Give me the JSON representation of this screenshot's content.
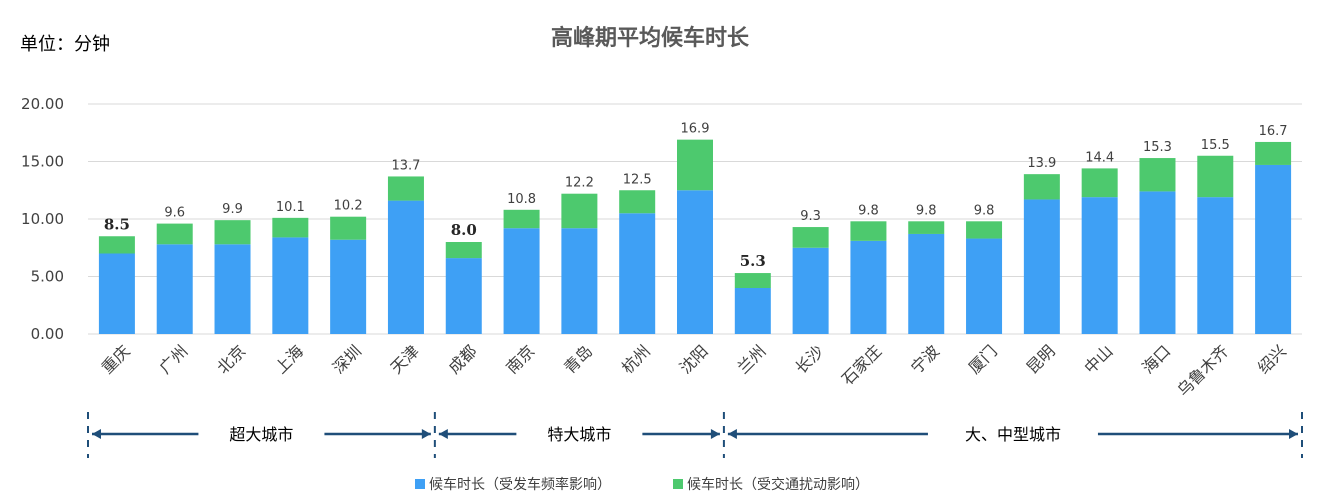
{
  "chart_data": {
    "type": "bar",
    "stacked": true,
    "title": "高峰期平均候车时长",
    "unit_label": "单位：分钟",
    "ylim": [
      0,
      20
    ],
    "yticks": [
      "0.00",
      "5.00",
      "10.00",
      "15.00",
      "20.00"
    ],
    "categories": [
      "重庆",
      "广州",
      "北京",
      "上海",
      "深圳",
      "天津",
      "成都",
      "南京",
      "青岛",
      "杭州",
      "沈阳",
      "兰州",
      "长沙",
      "石家庄",
      "宁波",
      "厦门",
      "昆明",
      "中山",
      "海口",
      "乌鲁木齐",
      "绍兴"
    ],
    "series": [
      {
        "name": "候车时长（受发车频率影响）",
        "color": "#3ea0f5",
        "values": [
          7.0,
          7.8,
          7.8,
          8.4,
          8.2,
          11.6,
          6.6,
          9.2,
          9.2,
          10.5,
          12.5,
          4.0,
          7.5,
          8.1,
          8.7,
          8.3,
          11.7,
          11.9,
          12.4,
          11.9,
          14.7
        ]
      },
      {
        "name": "候车时长（受交通扰动影响）",
        "color": "#4dc96e",
        "values": [
          1.5,
          1.8,
          2.1,
          1.7,
          2.0,
          2.1,
          1.4,
          1.6,
          3.0,
          2.0,
          4.4,
          1.3,
          1.8,
          1.7,
          1.1,
          1.5,
          2.2,
          2.5,
          2.9,
          3.6,
          2.0
        ]
      }
    ],
    "totals": [
      "8.5",
      "9.6",
      "9.9",
      "10.1",
      "10.2",
      "13.7",
      "8.0",
      "10.8",
      "12.2",
      "12.5",
      "16.9",
      "5.3",
      "9.3",
      "9.8",
      "9.8",
      "9.8",
      "13.9",
      "14.4",
      "15.3",
      "15.5",
      "16.7"
    ],
    "bold_totals": [
      0,
      6,
      11
    ],
    "groups": [
      {
        "label": "超大城市",
        "start": 0,
        "end": 5
      },
      {
        "label": "特大城市",
        "start": 6,
        "end": 10
      },
      {
        "label": "大、中型城市",
        "start": 11,
        "end": 20
      }
    ],
    "legend_position": "bottom",
    "grid": true
  },
  "colors": {
    "axis_text": "#404040",
    "grid": "#d9d9d9",
    "group_line": "#1f4e79"
  }
}
